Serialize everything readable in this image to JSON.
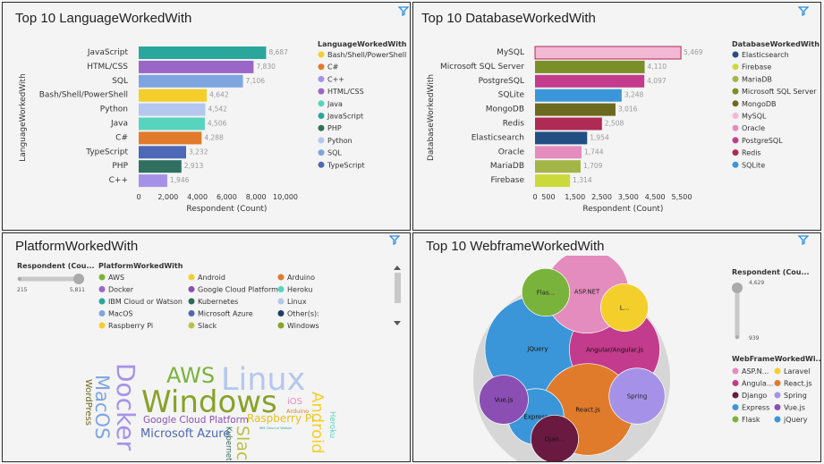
{
  "panels": {
    "lang_title": "Top 10 LanguageWorkedWith",
    "db_title": "Top 10 DatabaseWorkedWith",
    "platform_title": "PlatformWorkedWith",
    "web_title": "Top 10 WebframeWorkedWith"
  },
  "icons": {
    "filter": "funnel-filter-icon"
  },
  "colors": {
    "filter": "#2a8ee0",
    "track": "#c9c9c9",
    "bubble_bg": "#d6d6d6"
  },
  "chart_data": [
    {
      "type": "bar",
      "id": "lang",
      "title": "Top 10 LanguageWorkedWith",
      "ylabel": "LanguageWorkedWith",
      "xlabel": "Respondent (Count)",
      "xlim": [
        0,
        10000
      ],
      "xticks": [
        "0",
        "2,000",
        "4,000",
        "6,000",
        "8,000",
        "10,000"
      ],
      "categories": [
        "JavaScript",
        "HTML/CSS",
        "SQL",
        "Bash/Shell/PowerShell",
        "Python",
        "Java",
        "C#",
        "TypeScript",
        "PHP",
        "C++"
      ],
      "values": [
        8687,
        7830,
        7106,
        4642,
        4542,
        4506,
        4288,
        3232,
        2913,
        1946
      ],
      "value_labels": [
        "8,687",
        "7,830",
        "7,106",
        "4,642",
        "4,542",
        "4,506",
        "4,288",
        "3,232",
        "2,913",
        "1,946"
      ],
      "colors": [
        "#2aa79c",
        "#9a67c8",
        "#7fa5e0",
        "#f4cf2c",
        "#b4c7ee",
        "#57d4bd",
        "#e07b2c",
        "#4c68b6",
        "#2f7060",
        "#a592e8"
      ],
      "legend_title": "LanguageWorkedWith",
      "legend_placement": "right",
      "legend": [
        {
          "label": "Bash/Shell/PowerShell",
          "color": "#f4cf2c"
        },
        {
          "label": "C#",
          "color": "#e07b2c"
        },
        {
          "label": "C++",
          "color": "#a592e8"
        },
        {
          "label": "HTML/CSS",
          "color": "#9a67c8"
        },
        {
          "label": "Java",
          "color": "#57d4bd"
        },
        {
          "label": "JavaScript",
          "color": "#2aa79c"
        },
        {
          "label": "PHP",
          "color": "#2f7060"
        },
        {
          "label": "Python",
          "color": "#b4c7ee"
        },
        {
          "label": "SQL",
          "color": "#7fa5e0"
        },
        {
          "label": "TypeScript",
          "color": "#4c68b6"
        }
      ]
    },
    {
      "type": "bar",
      "id": "db",
      "title": "Top 10 DatabaseWorkedWith",
      "ylabel": "DatabaseWorkedWith",
      "xlabel": "Respondent (Count)",
      "xlim": [
        0,
        5500
      ],
      "xticks": [
        "0",
        "500",
        "1,000",
        "1,500",
        "2,000",
        "2,500",
        "3,000",
        "3,500",
        "4,000",
        "4,500",
        "5,000",
        "5,500"
      ],
      "categories": [
        "MySQL",
        "Microsoft SQL Server",
        "PostgreSQL",
        "SQLite",
        "MongoDB",
        "Redis",
        "Elasticsearch",
        "Oracle",
        "MariaDB",
        "Firebase"
      ],
      "values": [
        5469,
        4110,
        4097,
        3248,
        3016,
        2508,
        1954,
        1744,
        1709,
        1314
      ],
      "value_labels": [
        "5,469",
        "4,110",
        "4,097",
        "3,248",
        "3,016",
        "2,508",
        "1,954",
        "1,744",
        "1,709",
        "1,314"
      ],
      "colors": [
        "#f2b8d4",
        "#7b8f28",
        "#c33b8c",
        "#3a96d8",
        "#6b6a1e",
        "#b02a56",
        "#244f84",
        "#e48cbd",
        "#a4b548",
        "#ccd93b"
      ],
      "legend_title": "DatabaseWorkedWith",
      "legend_placement": "right",
      "legend": [
        {
          "label": "Elasticsearch",
          "color": "#244f84"
        },
        {
          "label": "Firebase",
          "color": "#ccd93b"
        },
        {
          "label": "MariaDB",
          "color": "#a4b548"
        },
        {
          "label": "Microsoft SQL Server",
          "color": "#7b8f28"
        },
        {
          "label": "MongoDB",
          "color": "#6b6a1e"
        },
        {
          "label": "MySQL",
          "color": "#f2b8d4"
        },
        {
          "label": "Oracle",
          "color": "#e48cbd"
        },
        {
          "label": "PostgreSQL",
          "color": "#c33b8c"
        },
        {
          "label": "Redis",
          "color": "#b02a56"
        },
        {
          "label": "SQLite",
          "color": "#3a96d8"
        }
      ]
    },
    {
      "type": "wordcloud",
      "id": "platform",
      "title": "PlatformWorkedWith",
      "size_legend_title": "Respondent (Cou...",
      "size_range": [
        "215",
        "5,811"
      ],
      "legend_title": "PlatformWorkedWith",
      "legend": [
        {
          "label": "AWS",
          "color": "#7ab33c"
        },
        {
          "label": "Android",
          "color": "#f4cf2c"
        },
        {
          "label": "Arduino",
          "color": "#e07b2c"
        },
        {
          "label": "Docker",
          "color": "#9a67c8"
        },
        {
          "label": "Google Cloud Platform",
          "color": "#8b4fb3"
        },
        {
          "label": "Heroku",
          "color": "#57d4bd"
        },
        {
          "label": "IBM Cloud or Watson",
          "color": "#2aa79c"
        },
        {
          "label": "Kubernetes",
          "color": "#2f6a58"
        },
        {
          "label": "Linux",
          "color": "#b4c7ee"
        },
        {
          "label": "MacOS",
          "color": "#7fa5e0"
        },
        {
          "label": "Microsoft Azure",
          "color": "#4c68b6"
        },
        {
          "label": "Other(s):",
          "color": "#243c6a"
        },
        {
          "label": "Raspberry Pi",
          "color": "#f4cf2c"
        },
        {
          "label": "Slack",
          "color": "#b8c346"
        },
        {
          "label": "Windows",
          "color": "#8aa12a"
        }
      ],
      "words": [
        {
          "text": "Windows",
          "color": "#8aa12a"
        },
        {
          "text": "Linux",
          "color": "#b4c7ee"
        },
        {
          "text": "Docker",
          "color": "#a592e8"
        },
        {
          "text": "AWS",
          "color": "#7ab33c"
        },
        {
          "text": "MacOS",
          "color": "#7fa5e0"
        },
        {
          "text": "Android",
          "color": "#f4cf2c"
        },
        {
          "text": "Slack",
          "color": "#b8c346"
        },
        {
          "text": "Microsoft Azure",
          "color": "#4c68b6"
        },
        {
          "text": "Google Cloud Platform",
          "color": "#8b4fb3"
        },
        {
          "text": "Raspberry Pi",
          "color": "#e6c21e"
        },
        {
          "text": "Kubernetes",
          "color": "#2f6a58"
        },
        {
          "text": "WordPress",
          "color": "#6b6a1e"
        },
        {
          "text": "iOS",
          "color": "#e48cbd"
        },
        {
          "text": "Heroku",
          "color": "#57d4bd"
        },
        {
          "text": "Arduino",
          "color": "#e07b2c"
        },
        {
          "text": "IBM Cloud or Watson",
          "color": "#2aa79c"
        }
      ]
    },
    {
      "type": "bubble",
      "id": "web",
      "title": "Top 10 WebframeWorkedWith",
      "size_legend_title": "Respondent (Cou...",
      "size_range": [
        "4,629",
        "939"
      ],
      "legend_title": "WebFrameWorkedWi...",
      "legend": [
        {
          "label": "ASP.N...",
          "color": "#e48cbd"
        },
        {
          "label": "Laravel",
          "color": "#f4cf2c"
        },
        {
          "label": "Angula...",
          "color": "#c33b8c"
        },
        {
          "label": "React.js",
          "color": "#e07b2c"
        },
        {
          "label": "Django",
          "color": "#6a1a40"
        },
        {
          "label": "Spring",
          "color": "#a592e8"
        },
        {
          "label": "Express",
          "color": "#3a96d8"
        },
        {
          "label": "Vue.js",
          "color": "#8b4fb3"
        },
        {
          "label": "Flask",
          "color": "#7ab33c"
        },
        {
          "label": "jQuery",
          "color": "#3a96d8"
        }
      ],
      "bubbles": [
        {
          "label": "jQuery",
          "value": 4629,
          "color": "#3a96d8"
        },
        {
          "label": "Angular/Angular.js",
          "value": 3400,
          "color": "#c33b8c"
        },
        {
          "label": "React.js",
          "value": 3500,
          "color": "#e07b2c"
        },
        {
          "label": "ASP.NET",
          "value": 2900,
          "color": "#e48cbd"
        },
        {
          "label": "Spring",
          "value": 1300,
          "color": "#a592e8"
        },
        {
          "label": "Express",
          "value": 1300,
          "color": "#3a96d8"
        },
        {
          "label": "Vue.js",
          "value": 1000,
          "color": "#8b4fb3"
        },
        {
          "label": "Flas...",
          "value": 950,
          "color": "#7ab33c"
        },
        {
          "label": "L...",
          "value": 939,
          "color": "#f4cf2c"
        },
        {
          "label": "Djan...",
          "value": 939,
          "color": "#6a1a40"
        }
      ]
    }
  ]
}
